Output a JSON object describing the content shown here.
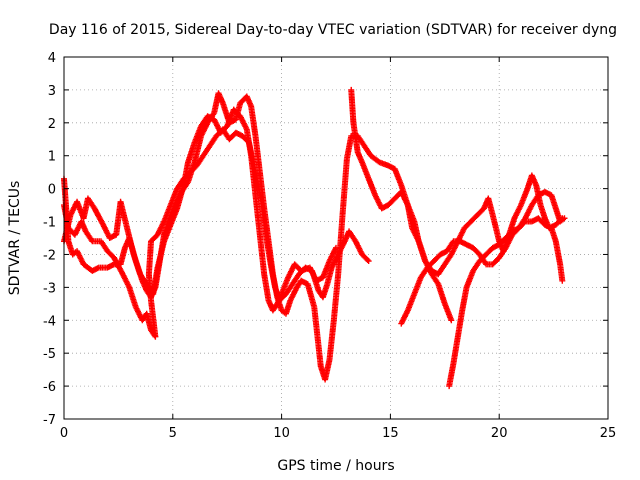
{
  "chart_data": {
    "type": "scatter",
    "title": "Day 116 of 2015, Sidereal Day-to-day VTEC variation (SDTVAR) for receiver dyng",
    "xlabel": "GPS time / hours",
    "ylabel": "SDTVAR / TECUs",
    "xlim": [
      0,
      25
    ],
    "ylim": [
      -7,
      4
    ],
    "xticks": [
      "0",
      "5",
      "10",
      "15",
      "20",
      "25"
    ],
    "yticks": [
      "-7",
      "-6",
      "-5",
      "-4",
      "-3",
      "-2",
      "-1",
      "0",
      "1",
      "2",
      "3",
      "4"
    ],
    "grid": true,
    "marker": "+",
    "color": "#ff0000",
    "series": [
      {
        "points": [
          [
            0.0,
            -0.5
          ],
          [
            0.2,
            -1.2
          ],
          [
            0.5,
            -1.4
          ],
          [
            0.8,
            -1.0
          ],
          [
            1.0,
            -1.3
          ],
          [
            1.3,
            -1.6
          ],
          [
            1.7,
            -1.6
          ],
          [
            2.0,
            -1.9
          ],
          [
            2.3,
            -2.1
          ],
          [
            2.7,
            -2.6
          ],
          [
            3.0,
            -3.0
          ],
          [
            3.3,
            -3.6
          ],
          [
            3.6,
            -4.0
          ],
          [
            3.8,
            -3.8
          ],
          [
            4.0,
            -4.3
          ],
          [
            4.2,
            -4.5
          ],
          [
            4.0,
            -3.4
          ],
          [
            3.9,
            -2.6
          ],
          [
            4.0,
            -1.6
          ],
          [
            4.3,
            -1.4
          ],
          [
            4.6,
            -1.0
          ],
          [
            4.9,
            -0.5
          ],
          [
            5.2,
            0.0
          ],
          [
            5.5,
            0.3
          ],
          [
            5.8,
            0.5
          ],
          [
            6.1,
            0.7
          ],
          [
            6.4,
            1.0
          ],
          [
            6.7,
            1.3
          ],
          [
            7.0,
            1.6
          ],
          [
            7.3,
            1.8
          ],
          [
            7.6,
            1.5
          ],
          [
            7.9,
            1.7
          ],
          [
            8.2,
            1.6
          ],
          [
            8.5,
            1.4
          ],
          [
            8.8,
            0.5
          ],
          [
            9.1,
            -0.5
          ],
          [
            9.3,
            -1.5
          ],
          [
            9.5,
            -2.3
          ],
          [
            9.7,
            -3.0
          ],
          [
            9.9,
            -3.4
          ],
          [
            10.2,
            -3.2
          ],
          [
            10.5,
            -2.9
          ],
          [
            10.8,
            -2.6
          ],
          [
            11.1,
            -2.4
          ],
          [
            11.4,
            -2.5
          ],
          [
            11.7,
            -3.1
          ],
          [
            11.9,
            -3.3
          ],
          [
            12.1,
            -2.9
          ],
          [
            12.3,
            -2.4
          ],
          [
            12.6,
            -2.0
          ],
          [
            12.9,
            -1.6
          ],
          [
            13.1,
            -1.3
          ],
          [
            13.4,
            -1.6
          ],
          [
            13.7,
            -2.0
          ],
          [
            14.0,
            -2.2
          ]
        ]
      },
      {
        "points": [
          [
            0.0,
            0.3
          ],
          [
            0.1,
            -0.6
          ],
          [
            0.2,
            -1.6
          ],
          [
            0.4,
            -2.0
          ],
          [
            0.6,
            -1.9
          ],
          [
            0.9,
            -2.3
          ],
          [
            1.3,
            -2.5
          ],
          [
            1.6,
            -2.4
          ],
          [
            2.0,
            -2.4
          ],
          [
            2.3,
            -2.3
          ],
          [
            2.6,
            -2.3
          ],
          [
            2.8,
            -1.8
          ],
          [
            3.0,
            -1.5
          ],
          [
            3.3,
            -2.2
          ],
          [
            3.6,
            -2.8
          ],
          [
            3.8,
            -3.1
          ],
          [
            4.0,
            -3.3
          ],
          [
            4.2,
            -3.0
          ],
          [
            4.4,
            -2.2
          ],
          [
            4.6,
            -1.4
          ],
          [
            4.8,
            -1.0
          ],
          [
            5.1,
            -0.5
          ],
          [
            5.4,
            -0.1
          ],
          [
            5.7,
            0.2
          ],
          [
            6.0,
            0.8
          ],
          [
            6.3,
            1.6
          ],
          [
            6.6,
            2.0
          ],
          [
            6.9,
            2.3
          ],
          [
            7.1,
            2.9
          ],
          [
            7.3,
            2.6
          ],
          [
            7.6,
            2.0
          ],
          [
            7.9,
            2.1
          ],
          [
            8.1,
            2.6
          ],
          [
            8.4,
            2.8
          ],
          [
            8.6,
            2.5
          ],
          [
            8.8,
            1.6
          ],
          [
            9.0,
            0.5
          ],
          [
            9.2,
            -0.6
          ],
          [
            9.4,
            -1.6
          ],
          [
            9.6,
            -2.6
          ],
          [
            9.8,
            -3.3
          ],
          [
            10.0,
            -3.7
          ],
          [
            10.2,
            -3.8
          ],
          [
            10.4,
            -3.4
          ],
          [
            10.7,
            -3.0
          ],
          [
            10.9,
            -2.8
          ],
          [
            11.2,
            -2.9
          ],
          [
            11.5,
            -3.6
          ],
          [
            11.8,
            -5.4
          ],
          [
            12.0,
            -5.8
          ],
          [
            12.2,
            -5.2
          ],
          [
            12.4,
            -4.0
          ],
          [
            12.6,
            -2.6
          ],
          [
            12.8,
            -0.8
          ],
          [
            13.0,
            0.9
          ],
          [
            13.2,
            1.6
          ],
          [
            13.5,
            1.6
          ],
          [
            13.8,
            1.3
          ],
          [
            14.1,
            1.0
          ],
          [
            14.5,
            0.8
          ],
          [
            14.9,
            0.7
          ],
          [
            15.2,
            0.6
          ],
          [
            15.5,
            0.1
          ],
          [
            15.8,
            -0.5
          ],
          [
            16.0,
            -1.2
          ],
          [
            16.3,
            -1.6
          ],
          [
            16.6,
            -2.2
          ],
          [
            16.9,
            -2.6
          ],
          [
            17.2,
            -2.9
          ],
          [
            17.5,
            -3.5
          ],
          [
            17.8,
            -4.0
          ]
        ]
      },
      {
        "points": [
          [
            0.0,
            -1.6
          ],
          [
            0.3,
            -0.8
          ],
          [
            0.6,
            -0.4
          ],
          [
            0.9,
            -0.9
          ],
          [
            1.1,
            -0.3
          ],
          [
            1.4,
            -0.6
          ],
          [
            1.8,
            -1.1
          ],
          [
            2.1,
            -1.5
          ],
          [
            2.4,
            -1.4
          ],
          [
            2.6,
            -0.4
          ],
          [
            2.9,
            -1.2
          ],
          [
            3.2,
            -2.0
          ],
          [
            3.5,
            -2.6
          ],
          [
            3.8,
            -2.9
          ],
          [
            4.1,
            -3.2
          ],
          [
            4.3,
            -2.4
          ],
          [
            4.6,
            -1.6
          ],
          [
            4.9,
            -1.1
          ],
          [
            5.2,
            -0.6
          ],
          [
            5.5,
            0.1
          ],
          [
            5.7,
            0.8
          ],
          [
            6.0,
            1.4
          ],
          [
            6.3,
            1.9
          ],
          [
            6.6,
            2.2
          ],
          [
            6.9,
            2.1
          ],
          [
            7.2,
            1.7
          ],
          [
            7.5,
            1.9
          ],
          [
            7.8,
            2.4
          ],
          [
            8.1,
            2.2
          ],
          [
            8.4,
            1.8
          ],
          [
            8.6,
            1.0
          ],
          [
            8.8,
            -0.2
          ],
          [
            9.0,
            -1.4
          ],
          [
            9.2,
            -2.6
          ],
          [
            9.4,
            -3.4
          ],
          [
            9.6,
            -3.7
          ],
          [
            9.8,
            -3.5
          ],
          [
            10.0,
            -3.2
          ],
          [
            10.3,
            -2.7
          ],
          [
            10.6,
            -2.3
          ],
          [
            10.9,
            -2.5
          ],
          [
            11.3,
            -2.4
          ],
          [
            11.6,
            -2.8
          ],
          [
            11.9,
            -2.7
          ],
          [
            12.2,
            -2.2
          ],
          [
            12.5,
            -1.8
          ]
        ]
      },
      {
        "points": [
          [
            13.2,
            3.0
          ],
          [
            13.3,
            2.0
          ],
          [
            13.5,
            1.1
          ],
          [
            13.7,
            0.8
          ],
          [
            14.0,
            0.3
          ],
          [
            14.3,
            -0.2
          ],
          [
            14.6,
            -0.6
          ],
          [
            14.9,
            -0.5
          ],
          [
            15.2,
            -0.3
          ],
          [
            15.5,
            -0.1
          ],
          [
            15.8,
            -0.5
          ],
          [
            16.1,
            -1.0
          ],
          [
            16.3,
            -1.6
          ],
          [
            16.6,
            -2.2
          ],
          [
            16.9,
            -2.5
          ],
          [
            17.2,
            -2.6
          ],
          [
            17.5,
            -2.3
          ],
          [
            17.8,
            -2.0
          ],
          [
            18.1,
            -1.6
          ],
          [
            18.4,
            -1.2
          ],
          [
            18.7,
            -1.0
          ],
          [
            19.0,
            -0.8
          ],
          [
            19.3,
            -0.6
          ],
          [
            19.5,
            -0.3
          ],
          [
            19.7,
            -0.8
          ],
          [
            20.0,
            -1.6
          ],
          [
            20.2,
            -1.9
          ],
          [
            20.4,
            -1.5
          ],
          [
            20.7,
            -0.9
          ],
          [
            21.0,
            -0.5
          ],
          [
            21.3,
            0.0
          ],
          [
            21.5,
            0.4
          ],
          [
            21.7,
            0.1
          ],
          [
            21.9,
            -0.5
          ],
          [
            22.1,
            -0.9
          ],
          [
            22.3,
            -1.2
          ],
          [
            22.6,
            -1.1
          ],
          [
            22.9,
            -0.9
          ]
        ]
      },
      {
        "points": [
          [
            15.5,
            -4.1
          ],
          [
            15.8,
            -3.7
          ],
          [
            16.1,
            -3.2
          ],
          [
            16.4,
            -2.7
          ],
          [
            16.7,
            -2.4
          ],
          [
            17.0,
            -2.2
          ],
          [
            17.3,
            -2.0
          ],
          [
            17.6,
            -1.9
          ],
          [
            17.9,
            -1.6
          ],
          [
            18.2,
            -1.6
          ],
          [
            18.5,
            -1.7
          ],
          [
            18.8,
            -1.8
          ],
          [
            19.1,
            -2.0
          ],
          [
            19.4,
            -2.3
          ],
          [
            19.7,
            -2.3
          ],
          [
            20.0,
            -2.1
          ],
          [
            20.3,
            -1.8
          ],
          [
            20.6,
            -1.4
          ],
          [
            20.9,
            -1.2
          ],
          [
            21.2,
            -1.0
          ],
          [
            21.5,
            -1.0
          ],
          [
            21.8,
            -0.9
          ],
          [
            22.1,
            -1.1
          ],
          [
            22.4,
            -1.2
          ],
          [
            22.6,
            -1.6
          ],
          [
            22.8,
            -2.3
          ],
          [
            22.9,
            -2.8
          ]
        ]
      },
      {
        "points": [
          [
            17.7,
            -6.0
          ],
          [
            17.9,
            -5.3
          ],
          [
            18.1,
            -4.5
          ],
          [
            18.3,
            -3.7
          ],
          [
            18.5,
            -3.0
          ],
          [
            18.8,
            -2.5
          ],
          [
            19.1,
            -2.2
          ],
          [
            19.4,
            -2.0
          ],
          [
            19.7,
            -1.8
          ],
          [
            20.0,
            -1.7
          ],
          [
            20.3,
            -1.5
          ],
          [
            20.6,
            -1.3
          ],
          [
            20.9,
            -1.2
          ],
          [
            21.2,
            -0.9
          ],
          [
            21.5,
            -0.5
          ],
          [
            21.8,
            -0.2
          ],
          [
            22.1,
            -0.1
          ],
          [
            22.4,
            -0.2
          ],
          [
            22.6,
            -0.6
          ],
          [
            22.8,
            -1.0
          ],
          [
            23.0,
            -0.9
          ]
        ]
      }
    ]
  }
}
